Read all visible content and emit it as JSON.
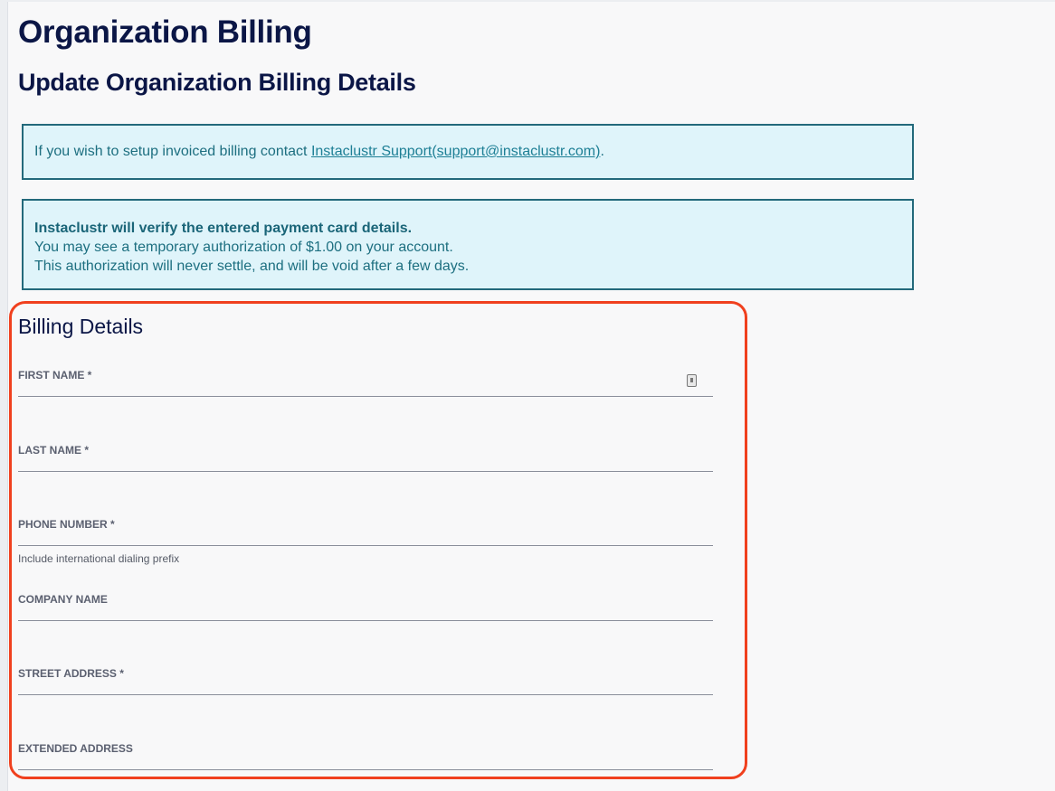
{
  "page": {
    "title": "Organization Billing",
    "subtitle": "Update Organization Billing Details"
  },
  "alerts": {
    "invoice_prefix": "If you wish to setup invoiced billing contact ",
    "invoice_link": "Instaclustr Support(support@instaclustr.com)",
    "invoice_suffix": ".",
    "verify_title": "Instaclustr will verify the entered payment card details.",
    "verify_line1": "You may see a temporary authorization of $1.00 on your account.",
    "verify_line2": "This authorization will never settle, and will be void after a few days."
  },
  "billing": {
    "heading": "Billing Details",
    "fields": [
      {
        "label": "FIRST NAME *",
        "value": ""
      },
      {
        "label": "LAST NAME *",
        "value": ""
      },
      {
        "label": "PHONE NUMBER *",
        "value": "",
        "hint": "Include international dialing prefix"
      },
      {
        "label": "COMPANY NAME",
        "value": ""
      },
      {
        "label": "STREET ADDRESS *",
        "value": ""
      },
      {
        "label": "EXTENDED ADDRESS",
        "value": ""
      }
    ]
  },
  "colors": {
    "highlight": "#f0401e",
    "alert_bg": "#dff4fa",
    "alert_border": "#23697b",
    "heading": "#0b1646"
  }
}
